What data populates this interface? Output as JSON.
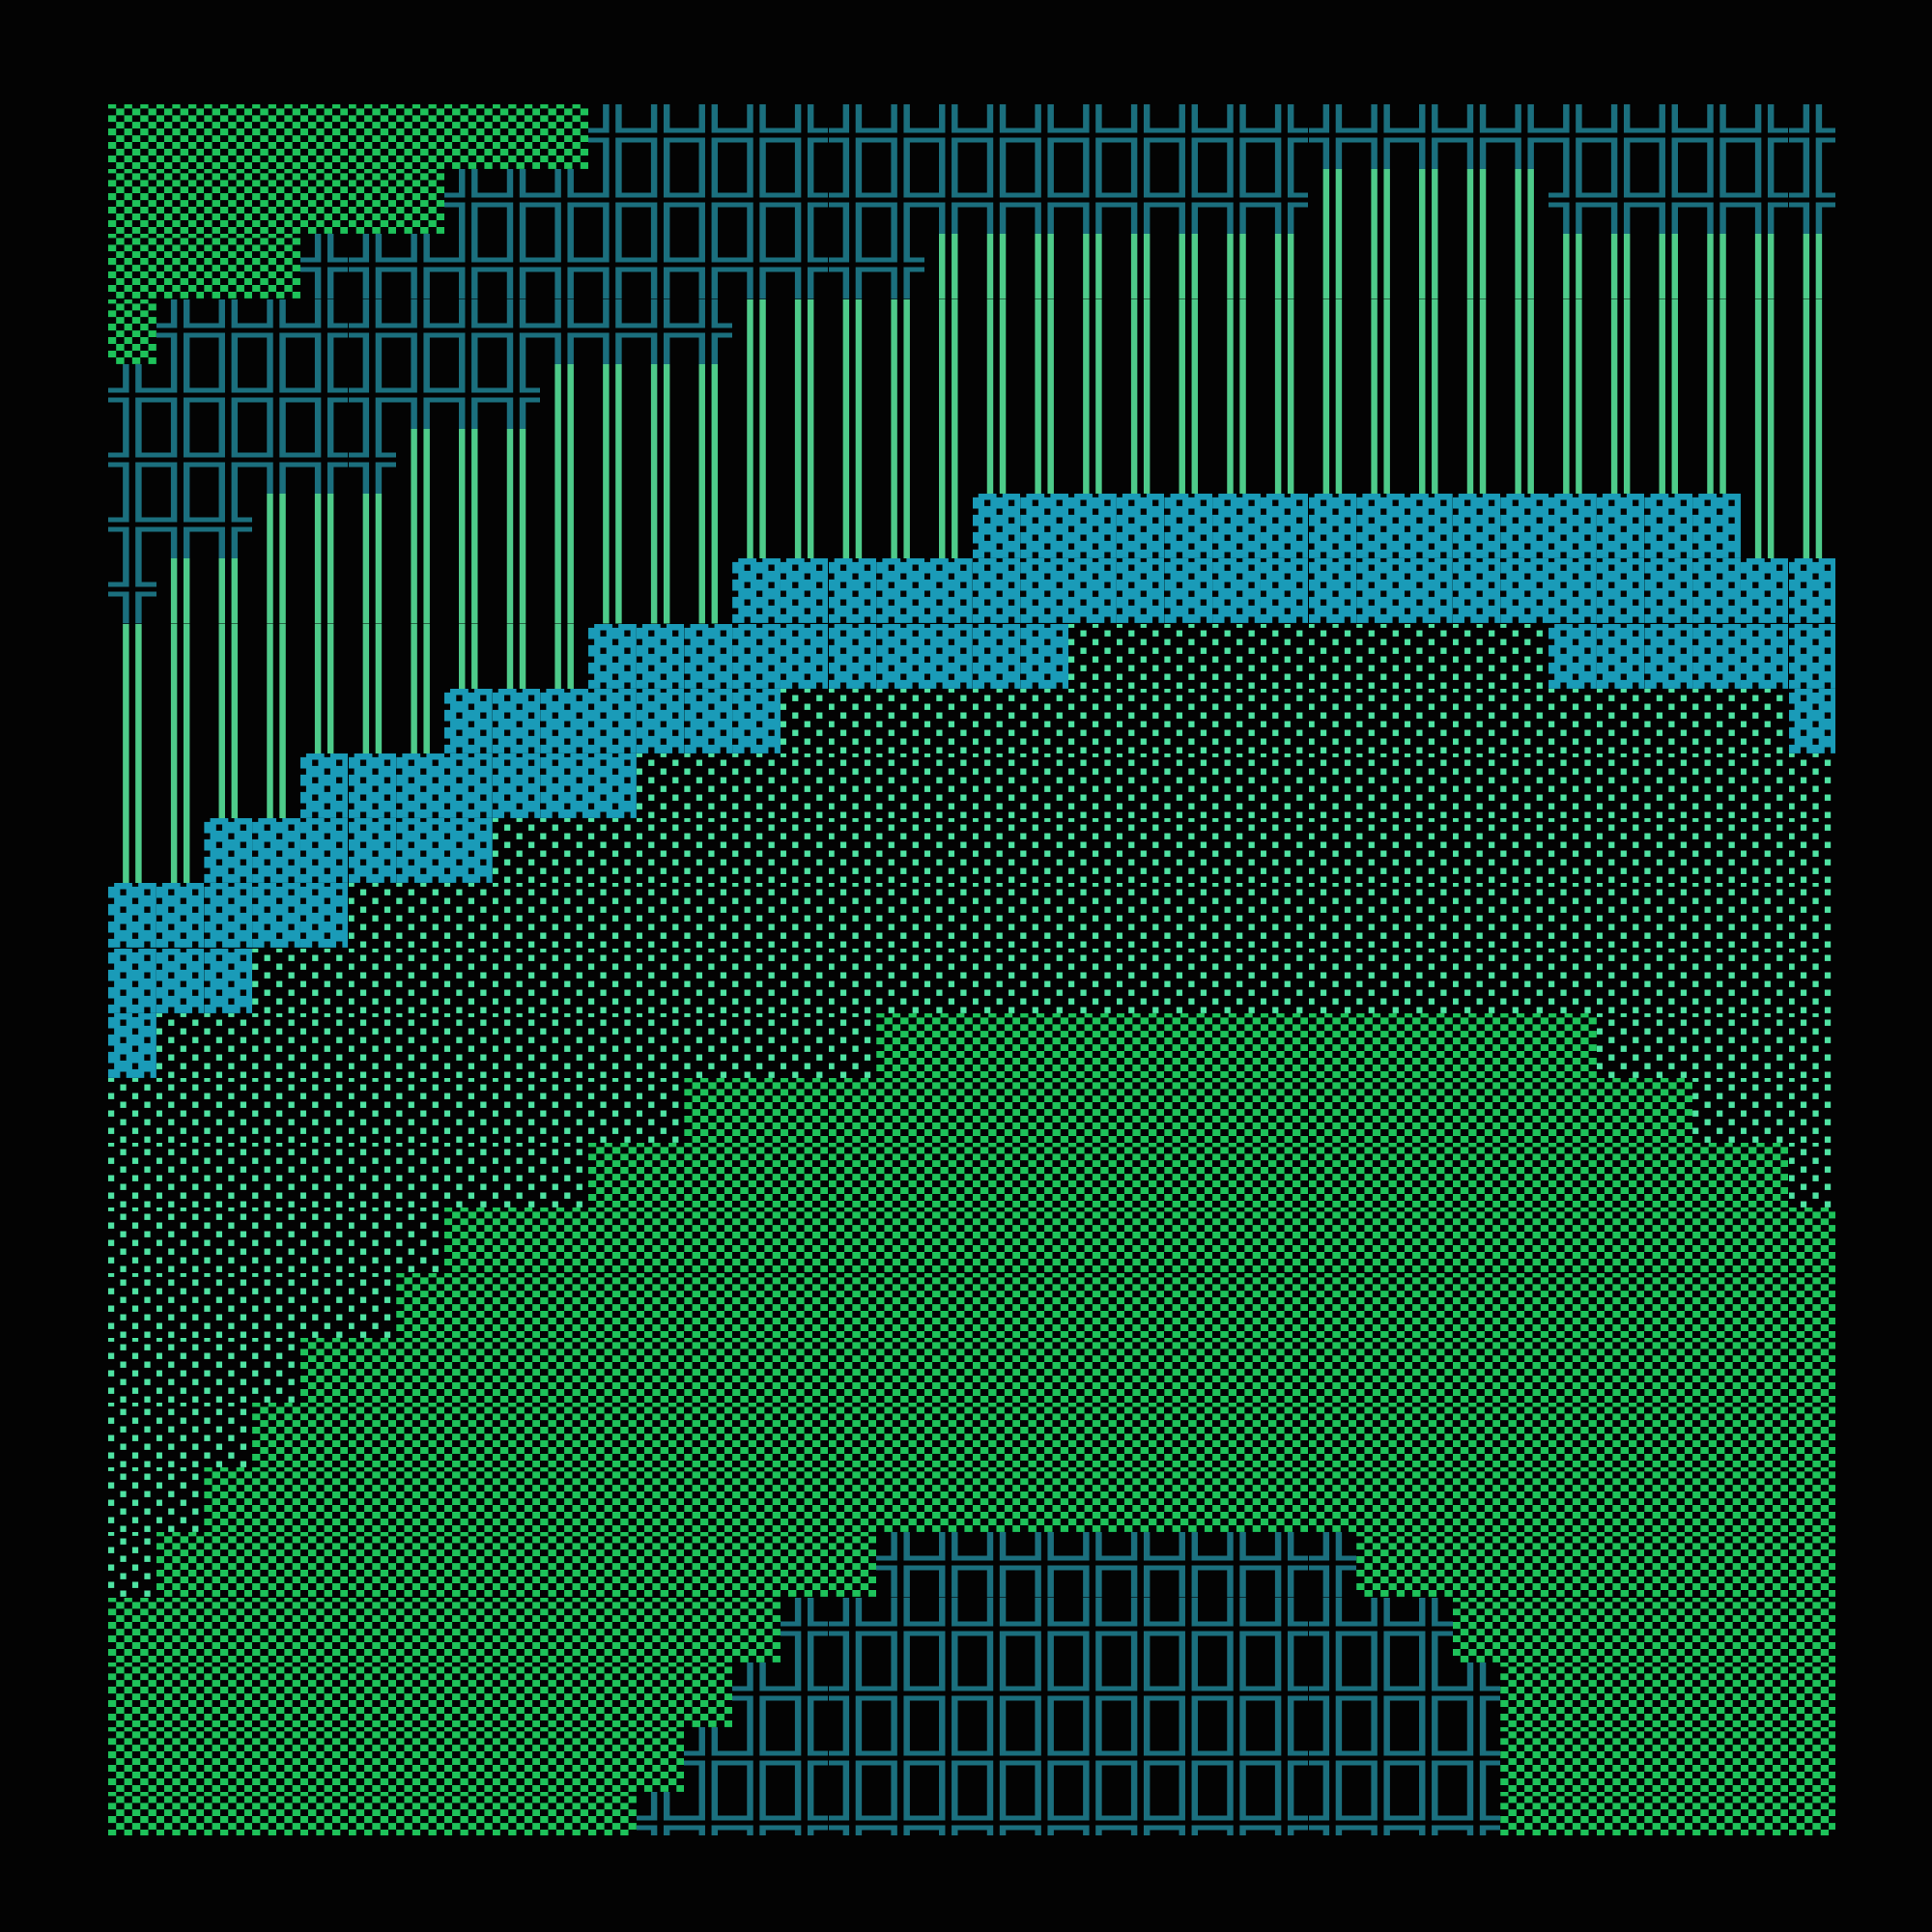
{
  "legend": {
    "A": {
      "char": "▒",
      "color": "#1ec25a"
    },
    "X": {
      "char": "╬",
      "color": "#1b6f7e"
    },
    "I": {
      "char": "║",
      "color": "#4ecb8a"
    },
    "B": {
      "char": "▓",
      "color": "#1a9bb8"
    },
    "L": {
      "char": "░",
      "color": "#4fe3a3"
    }
  },
  "rows": [
    "AAAAAAAAAAXXXXXXXXXXXXXXXXXXXXXXXXXXX",
    "AAAAAAAXXXXXXXXXXXXXXXXXXIIIIIXXXXXXX",
    "AAAAXXXXXXXXXXXXXIIIIIIIIIIIIIIIIIIII",
    "AXXXXXXXXXXXXIIIIIIIIIIIIIIIIIIIIIIII",
    "XXXXXXXXXIIIIIIIIIIIIIIIIIIIIIIIIIIII",
    "XXXXXXIIIIIIIIIIIIIIIIIIIIIIIIIIIIIII",
    "XXXIIIIIIIIIIIIIIIBBBBBBBBBBBBBBBBIII",
    "XIIIIIIIIIIIIBBBBBBBBBBBBBBBBBBBBBBBB",
    "IIIIIIIIIIBBBBBBBBBBLLLLLLLLLLBBBBBBB",
    "IIIIIIIBBBBBBBLLLLLLLLLLLLLLLLLLLLLBB",
    "IIIIBBBBBBBLLLLLLLLLLLLLLLLLLLLLLLLLL",
    "IIBBBBBBLLLLLLLLLLLLLLLLLLLLLLLLLLLLL",
    "BBBBBLLLLLLLLLLLLLLLLLLLLLLLLLLLLLLLL",
    "BBBLLLLLLLLLLLLLLLLLLLLLLLLLLLLLLLLLL",
    "BLLLLLLLLLLLLLLLAAAAAAAAAAAAAAALLLLLL",
    "LLLLLLLLLLLLAAAAAAAAAAAAAAAAAAAAALLLL",
    "LLLLLLLLLLAAAAAAAAAAAAAAAAAAAAAAAAALL",
    "LLLLLLLAAAAAAAAAAAAAAAAAAAAAAAAAAAAAA",
    "LLLLLLAAAAAAAAAAAAAAAAAAAAAAAAAAAAAAA",
    "LLLLAAAAAAAAAAAAAAAAAAAAAAAAAAAAAAAAA",
    "LLLAAAAAAAAAAAAAAAAAAAAAAAAAAAAAAAAAA",
    "LLAAAAAAAAAAAAAAAAAAAAAAAAAAAAAAAAAAA",
    "LAAAAAAAAAAAAAAAXXXXXXXXXXAAAAAAAAAAA",
    "AAAAAAAAAAAAAAXXXXXXXXXXXXXXAAAAAAAAA",
    "AAAAAAAAAAAAAXXXXXXXXXXXXXXXXAAAAAAAA",
    "AAAAAAAAAAAAXXXXXXXXXXXXXXXXXAAAAAAAA",
    "AAAAAAAAAAAXXXXXXXXXXXXXXXXXXAAAAAAAA"
  ]
}
